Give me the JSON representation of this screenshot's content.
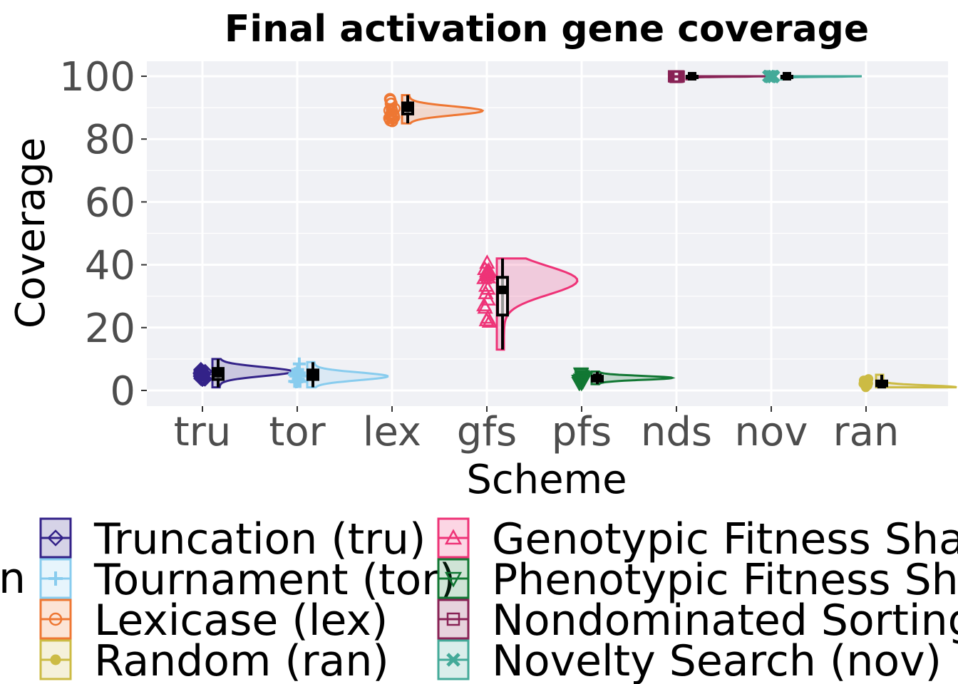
{
  "chart_data": {
    "type": "raincloud",
    "title": "Final activation gene coverage",
    "xlabel": "Scheme",
    "ylabel": "Coverage",
    "ylim": [
      -5,
      105
    ],
    "yticks": [
      0,
      20,
      40,
      60,
      80,
      100
    ],
    "grid": true,
    "legend_position": "bottom",
    "legend_title": "Selection",
    "categories": [
      "tru",
      "tor",
      "lex",
      "gfs",
      "pfs",
      "nds",
      "nov",
      "ran"
    ],
    "series": [
      {
        "code": "tru",
        "name": "Truncation (tru)",
        "color": "#332288",
        "marker": "diamond",
        "min": 1,
        "q1": 3.5,
        "median": 5.5,
        "q3": 7,
        "max": 10,
        "density_peak": 6,
        "density_width": 0.85
      },
      {
        "code": "tor",
        "name": "Tournament (tor)",
        "color": "#88CCEE",
        "marker": "plus",
        "min": 1,
        "q1": 3.5,
        "median": 5,
        "q3": 6.5,
        "max": 9,
        "density_peak": 4.5,
        "density_width": 0.85
      },
      {
        "code": "lex",
        "name": "Lexicase (lex)",
        "color": "#EE7733",
        "marker": "circle",
        "min": 85,
        "q1": 88,
        "median": 90,
        "q3": 91.5,
        "max": 94,
        "density_peak": 89,
        "density_width": 0.85
      },
      {
        "code": "gfs",
        "name": "Genotypic Fitness Sharing (gfs)",
        "color": "#EE3377",
        "marker": "triangle",
        "min": 13,
        "q1": 24,
        "median": 32,
        "q3": 36,
        "max": 42,
        "density_peak": 35,
        "density_width": 0.85
      },
      {
        "code": "pfs",
        "name": "Phenotypic Fitness Sharing (pfs)",
        "color": "#117733",
        "marker": "triangle-down",
        "min": 2,
        "q1": 3,
        "median": 4,
        "q3": 4.5,
        "max": 6,
        "density_peak": 4,
        "density_width": 0.85
      },
      {
        "code": "nds",
        "name": "Nondominated Sorting (nds)",
        "color": "#882255",
        "marker": "square",
        "min": 99,
        "q1": 100,
        "median": 100,
        "q3": 100,
        "max": 100,
        "density_peak": 100,
        "density_width": 0.85
      },
      {
        "code": "nov",
        "name": "Novelty Search (nov)",
        "color": "#44AA99",
        "marker": "x",
        "min": 99,
        "q1": 100,
        "median": 100,
        "q3": 100,
        "max": 100,
        "density_peak": 100,
        "density_width": 0.85
      },
      {
        "code": "ran",
        "name": "Random (ran)",
        "color": "#CCBB44",
        "marker": "dot",
        "min": 1,
        "q1": 1.5,
        "median": 2,
        "q3": 3,
        "max": 5,
        "density_peak": 1,
        "density_width": 0.85
      }
    ],
    "legend_order": [
      "tru",
      "tor",
      "lex",
      "ran",
      "gfs",
      "pfs",
      "nds",
      "nov"
    ]
  }
}
